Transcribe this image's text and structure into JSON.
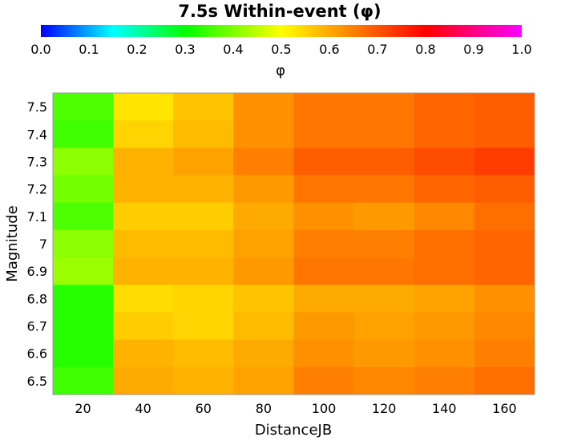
{
  "chart_data": {
    "type": "heatmap",
    "title": "7.5s Within-event (φ)",
    "xlabel": "DistanceJB",
    "ylabel": "Magnitude",
    "colorbar": {
      "label": "φ",
      "range": [
        0.0,
        1.0
      ],
      "ticks": [
        "0.0",
        "0.1",
        "0.2",
        "0.3",
        "0.4",
        "0.5",
        "0.6",
        "0.7",
        "0.8",
        "0.9",
        "1.0"
      ],
      "orientation": "horizontal",
      "position": "top"
    },
    "x_ticks": [
      "20",
      "40",
      "60",
      "80",
      "100",
      "120",
      "140",
      "160"
    ],
    "y_ticks": [
      "7.5",
      "7.4",
      "7.3",
      "7.2",
      "7.1",
      "7",
      "6.9",
      "6.8",
      "6.7",
      "6.6",
      "6.5"
    ],
    "x_range": [
      10,
      170
    ],
    "rows": [
      {
        "magnitude": "7.5",
        "values": [
          0.36,
          0.53,
          0.57,
          0.63,
          0.66,
          0.66,
          0.68,
          0.69
        ]
      },
      {
        "magnitude": "7.4",
        "values": [
          0.35,
          0.55,
          0.58,
          0.63,
          0.66,
          0.66,
          0.68,
          0.69
        ]
      },
      {
        "magnitude": "7.3",
        "values": [
          0.41,
          0.59,
          0.61,
          0.65,
          0.69,
          0.69,
          0.71,
          0.73
        ]
      },
      {
        "magnitude": "7.2",
        "values": [
          0.39,
          0.59,
          0.59,
          0.62,
          0.66,
          0.66,
          0.68,
          0.69
        ]
      },
      {
        "magnitude": "7.1",
        "values": [
          0.36,
          0.56,
          0.56,
          0.6,
          0.63,
          0.62,
          0.64,
          0.67
        ]
      },
      {
        "magnitude": "7",
        "values": [
          0.41,
          0.58,
          0.58,
          0.61,
          0.65,
          0.65,
          0.67,
          0.68
        ]
      },
      {
        "magnitude": "6.9",
        "values": [
          0.42,
          0.59,
          0.59,
          0.62,
          0.66,
          0.66,
          0.67,
          0.68
        ]
      },
      {
        "magnitude": "6.8",
        "values": [
          0.33,
          0.54,
          0.55,
          0.57,
          0.6,
          0.6,
          0.61,
          0.63
        ]
      },
      {
        "magnitude": "6.7",
        "values": [
          0.33,
          0.56,
          0.55,
          0.58,
          0.62,
          0.61,
          0.62,
          0.64
        ]
      },
      {
        "magnitude": "6.6",
        "values": [
          0.33,
          0.59,
          0.58,
          0.6,
          0.63,
          0.62,
          0.63,
          0.65
        ]
      },
      {
        "magnitude": "6.5",
        "values": [
          0.35,
          0.6,
          0.59,
          0.61,
          0.65,
          0.64,
          0.65,
          0.67
        ]
      }
    ]
  }
}
